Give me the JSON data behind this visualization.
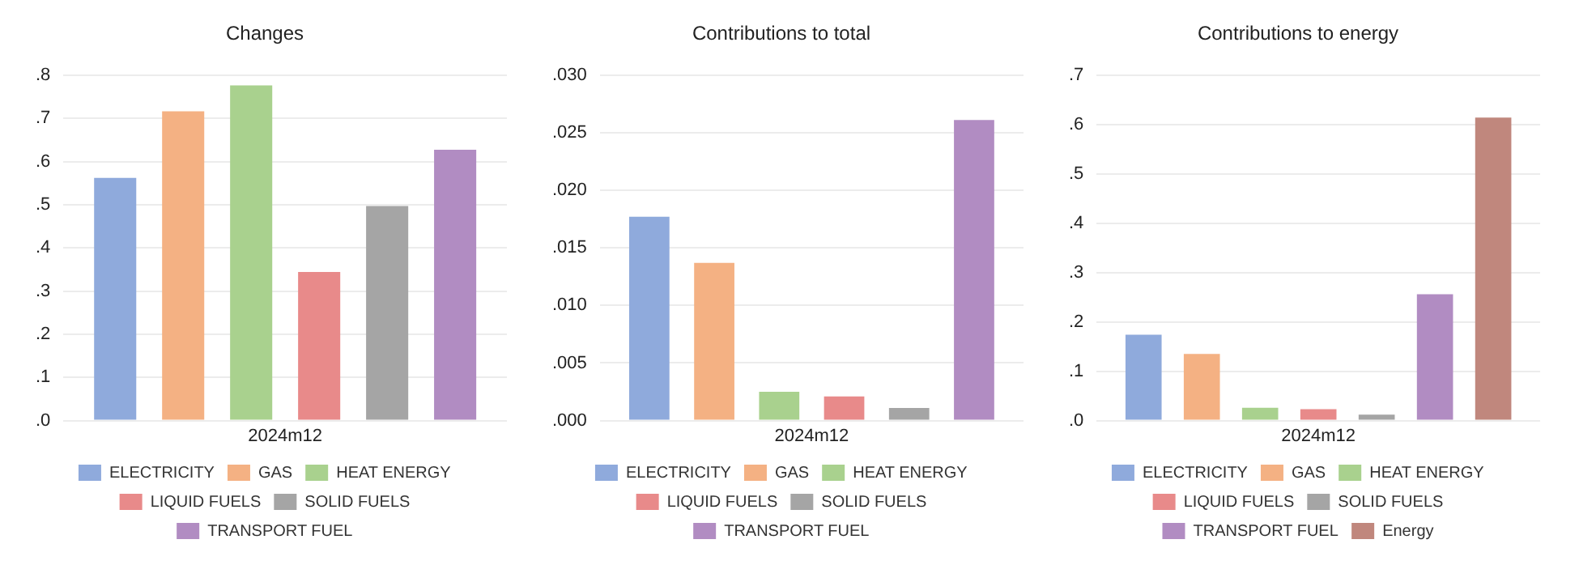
{
  "chart_data": [
    {
      "type": "bar",
      "title": "Changes",
      "categories": [
        "2024m12"
      ],
      "series": [
        {
          "name": "ELECTRICITY",
          "color": "#8faadc",
          "values": [
            0.562
          ]
        },
        {
          "name": "GAS",
          "color": "#f4b183",
          "values": [
            0.716
          ]
        },
        {
          "name": "HEAT ENERGY",
          "color": "#a9d18e",
          "values": [
            0.776
          ]
        },
        {
          "name": "LIQUID FUELS",
          "color": "#e88a8a",
          "values": [
            0.344
          ]
        },
        {
          "name": "SOLID FUELS",
          "color": "#a5a5a5",
          "values": [
            0.497
          ]
        },
        {
          "name": "TRANSPORT FUEL",
          "color": "#b18cc2",
          "values": [
            0.627
          ]
        }
      ],
      "ylim": [
        0,
        0.8
      ],
      "yticks": [
        {
          "value": 0,
          "label": ".0"
        },
        {
          "value": 0.1,
          "label": ".1"
        },
        {
          "value": 0.2,
          "label": ".2"
        },
        {
          "value": 0.3,
          "label": ".3"
        },
        {
          "value": 0.4,
          "label": ".4"
        },
        {
          "value": 0.5,
          "label": ".5"
        },
        {
          "value": 0.6,
          "label": ".6"
        },
        {
          "value": 0.7,
          "label": ".7"
        },
        {
          "value": 0.8,
          "label": ".8"
        }
      ],
      "grid": "y",
      "legend": "bottom"
    },
    {
      "type": "bar",
      "title": "Contributions to total",
      "categories": [
        "2024m12"
      ],
      "series": [
        {
          "name": "ELECTRICITY",
          "color": "#8faadc",
          "values": [
            0.0177
          ]
        },
        {
          "name": "GAS",
          "color": "#f4b183",
          "values": [
            0.0137
          ]
        },
        {
          "name": "HEAT ENERGY",
          "color": "#a9d18e",
          "values": [
            0.0025
          ]
        },
        {
          "name": "LIQUID FUELS",
          "color": "#e88a8a",
          "values": [
            0.0021
          ]
        },
        {
          "name": "SOLID FUELS",
          "color": "#a5a5a5",
          "values": [
            0.0011
          ]
        },
        {
          "name": "TRANSPORT FUEL",
          "color": "#b18cc2",
          "values": [
            0.0261
          ]
        }
      ],
      "ylim": [
        0,
        0.03
      ],
      "yticks": [
        {
          "value": 0,
          "label": ".000"
        },
        {
          "value": 0.005,
          "label": ".005"
        },
        {
          "value": 0.01,
          "label": ".010"
        },
        {
          "value": 0.015,
          "label": ".015"
        },
        {
          "value": 0.02,
          "label": ".020"
        },
        {
          "value": 0.025,
          "label": ".025"
        },
        {
          "value": 0.03,
          "label": ".030"
        }
      ],
      "grid": "y",
      "legend": "bottom"
    },
    {
      "type": "bar",
      "title": "Contributions to energy",
      "categories": [
        "2024m12"
      ],
      "series": [
        {
          "name": "ELECTRICITY",
          "color": "#8faadc",
          "values": [
            0.174
          ]
        },
        {
          "name": "GAS",
          "color": "#f4b183",
          "values": [
            0.135
          ]
        },
        {
          "name": "HEAT ENERGY",
          "color": "#a9d18e",
          "values": [
            0.026
          ]
        },
        {
          "name": "LIQUID FUELS",
          "color": "#e88a8a",
          "values": [
            0.023
          ]
        },
        {
          "name": "SOLID FUELS",
          "color": "#a5a5a5",
          "values": [
            0.012
          ]
        },
        {
          "name": "TRANSPORT FUEL",
          "color": "#b18cc2",
          "values": [
            0.256
          ]
        },
        {
          "name": "Energy",
          "color": "#c0877d",
          "values": [
            0.614
          ]
        }
      ],
      "ylim": [
        0,
        0.7
      ],
      "yticks": [
        {
          "value": 0,
          "label": ".0"
        },
        {
          "value": 0.1,
          "label": ".1"
        },
        {
          "value": 0.2,
          "label": ".2"
        },
        {
          "value": 0.3,
          "label": ".3"
        },
        {
          "value": 0.4,
          "label": ".4"
        },
        {
          "value": 0.5,
          "label": ".5"
        },
        {
          "value": 0.6,
          "label": ".6"
        },
        {
          "value": 0.7,
          "label": ".7"
        }
      ],
      "grid": "y",
      "legend": "bottom"
    }
  ]
}
